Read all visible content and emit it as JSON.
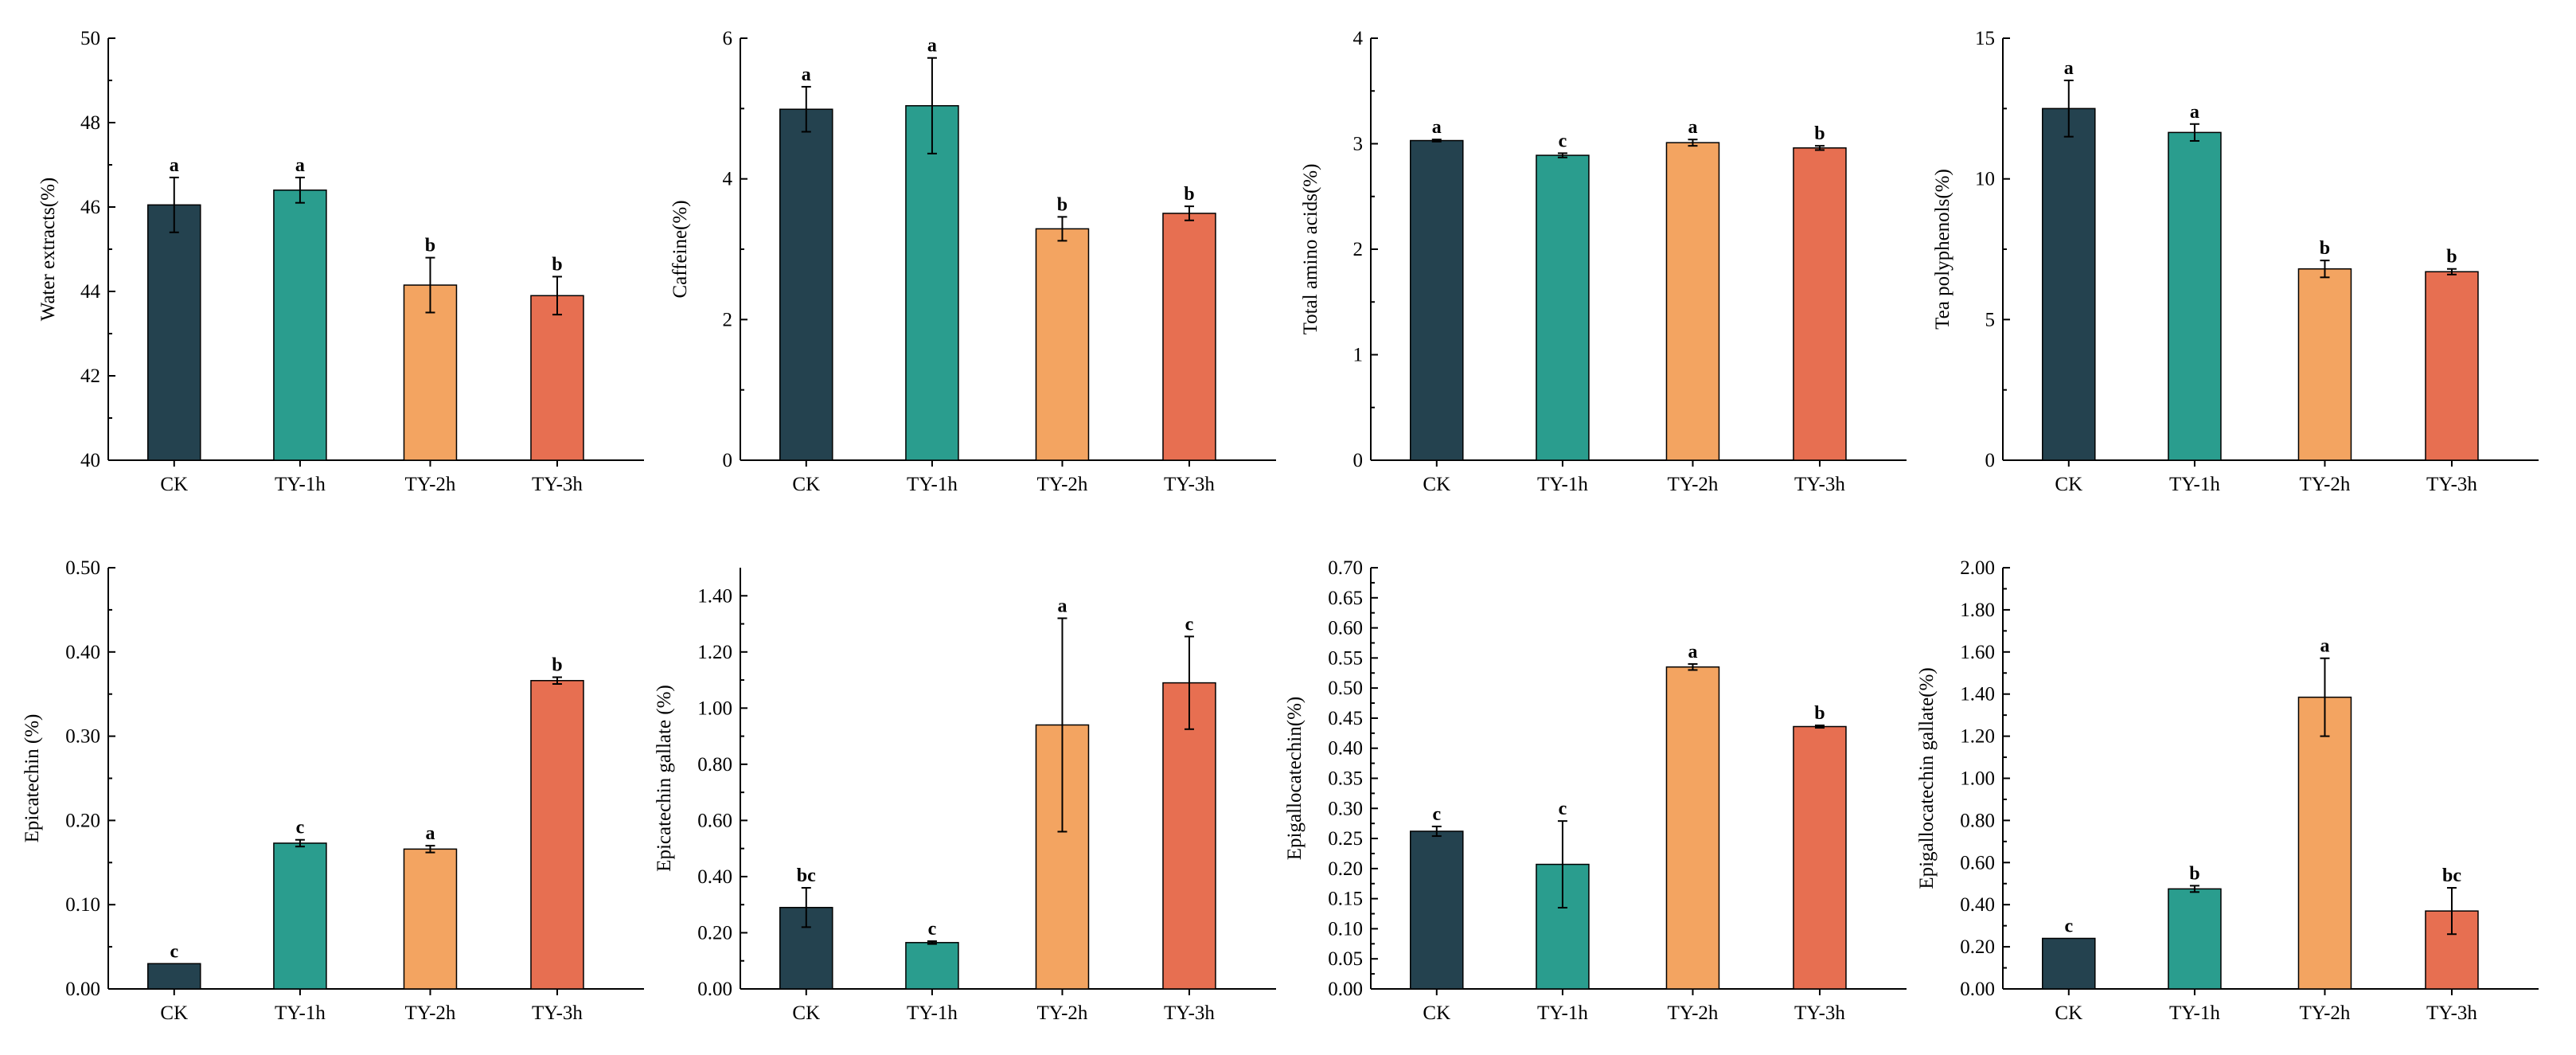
{
  "colors": {
    "CK": "#24424f",
    "TY-1h": "#2a9d8e",
    "TY-2h": "#f3a461",
    "TY-3h": "#e76f51"
  },
  "chart_data": [
    {
      "type": "bar",
      "ylabel": "Water extracts(%)",
      "categories": [
        "CK",
        "TY-1h",
        "TY-2h",
        "TY-3h"
      ],
      "values": [
        46.05,
        46.4,
        44.15,
        43.9
      ],
      "errors": [
        0.65,
        0.3,
        0.65,
        0.45
      ],
      "letters": [
        "a",
        "a",
        "b",
        "b"
      ],
      "ylim": [
        40,
        50
      ],
      "ticks": [
        "40",
        "42",
        "44",
        "46",
        "48",
        "50"
      ]
    },
    {
      "type": "bar",
      "ylabel": "Caffeine(%)",
      "categories": [
        "CK",
        "TY-1h",
        "TY-2h",
        "TY-3h"
      ],
      "values": [
        4.99,
        5.04,
        3.29,
        3.51
      ],
      "errors": [
        0.32,
        0.68,
        0.17,
        0.1
      ],
      "letters": [
        "a",
        "a",
        "b",
        "b"
      ],
      "ylim": [
        0,
        6
      ],
      "ticks": [
        "0",
        "2",
        "4",
        "6"
      ]
    },
    {
      "type": "bar",
      "ylabel": "Total amino acids(%)",
      "categories": [
        "CK",
        "TY-1h",
        "TY-2h",
        "TY-3h"
      ],
      "values": [
        3.03,
        2.89,
        3.01,
        2.96
      ],
      "errors": [
        0.01,
        0.02,
        0.03,
        0.02
      ],
      "letters": [
        "a",
        "c",
        "a",
        "b"
      ],
      "ylim": [
        0,
        4
      ],
      "ticks": [
        "0",
        "1",
        "2",
        "3",
        "4"
      ]
    },
    {
      "type": "bar",
      "ylabel": "Tea polyphenols(%)",
      "categories": [
        "CK",
        "TY-1h",
        "TY-2h",
        "TY-3h"
      ],
      "values": [
        12.5,
        11.65,
        6.8,
        6.7
      ],
      "errors": [
        1.0,
        0.3,
        0.3,
        0.1
      ],
      "letters": [
        "a",
        "a",
        "b",
        "b"
      ],
      "ylim": [
        0,
        15
      ],
      "ticks": [
        "0",
        "5",
        "10",
        "15"
      ]
    },
    {
      "type": "bar",
      "ylabel": "Epicatechin (%)",
      "categories": [
        "CK",
        "TY-1h",
        "TY-2h",
        "TY-3h"
      ],
      "values": [
        0.03,
        0.173,
        0.166,
        0.366
      ],
      "errors": [
        0.0,
        0.004,
        0.004,
        0.004
      ],
      "letters": [
        "c",
        "c",
        "a",
        "b"
      ],
      "ylim": [
        0,
        0.5
      ],
      "ticks": [
        "0.00",
        "0.10",
        "0.20",
        "0.30",
        "0.40",
        "0.50"
      ]
    },
    {
      "type": "bar",
      "ylabel": "Epicatechin gallate (%)",
      "categories": [
        "CK",
        "TY-1h",
        "TY-2h",
        "TY-3h"
      ],
      "values": [
        0.29,
        0.165,
        0.94,
        1.09
      ],
      "errors": [
        0.07,
        0.005,
        0.38,
        0.165
      ],
      "letters": [
        "bc",
        "c",
        "a",
        "c"
      ],
      "ylim": [
        0,
        1.5
      ],
      "ticks": [
        "0.00",
        "0.20",
        "0.40",
        "0.60",
        "0.80",
        "1.00",
        "1.20",
        "1.40"
      ]
    },
    {
      "type": "bar",
      "ylabel": "Epigallocatechin(%)",
      "categories": [
        "CK",
        "TY-1h",
        "TY-2h",
        "TY-3h"
      ],
      "values": [
        0.262,
        0.207,
        0.535,
        0.436
      ],
      "errors": [
        0.008,
        0.072,
        0.005,
        0.002
      ],
      "letters": [
        "c",
        "c",
        "a",
        "b"
      ],
      "ylim": [
        0,
        0.7
      ],
      "ticks": [
        "0.00",
        "0.05",
        "0.10",
        "0.15",
        "0.20",
        "0.25",
        "0.30",
        "0.35",
        "0.40",
        "0.45",
        "0.50",
        "0.55",
        "0.60",
        "0.65",
        "0.70"
      ]
    },
    {
      "type": "bar",
      "ylabel": "Epigallocatechin gallate(%)",
      "categories": [
        "CK",
        "TY-1h",
        "TY-2h",
        "TY-3h"
      ],
      "values": [
        0.24,
        0.475,
        1.385,
        0.37
      ],
      "errors": [
        0.0,
        0.015,
        0.185,
        0.11
      ],
      "letters": [
        "c",
        "b",
        "a",
        "bc"
      ],
      "ylim": [
        0,
        2.0
      ],
      "ticks": [
        "0.00",
        "0.20",
        "0.40",
        "0.60",
        "0.80",
        "1.00",
        "1.20",
        "1.40",
        "1.60",
        "1.80",
        "2.00"
      ]
    }
  ]
}
